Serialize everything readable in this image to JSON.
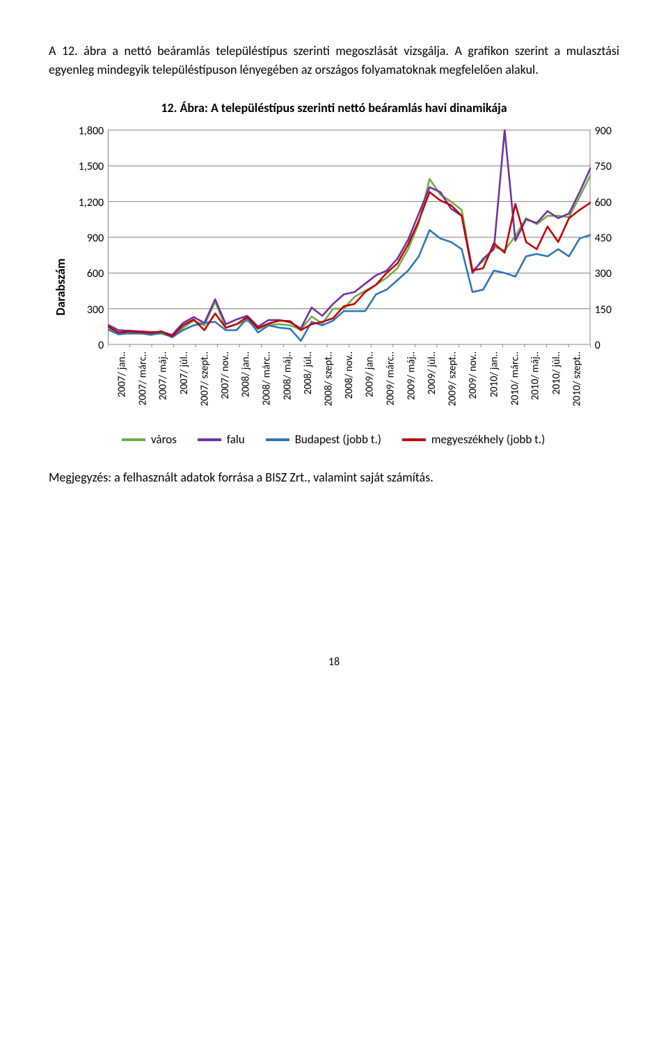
{
  "text": {
    "intro": "A 12. ábra a nettó beáramlás településtípus szerinti megoszlását vizsgálja. A grafikon szerint a mulasztási egyenleg mindegyik településtípuson lényegében az országos folyamatoknak megfelelően alakul.",
    "fig_title": "12. Ábra: A településtípus szerinti nettó beáramlás havi dinamikája",
    "yaxis_label": "Darabszám",
    "note": "Megjegyzés: a felhasznált adatok forrása a BISZ Zrt., valamint saját számítás.",
    "page_number": "18"
  },
  "chart": {
    "type": "line",
    "background_color": "#ffffff",
    "grid_color": "#808080",
    "axis_color": "#808080",
    "line_width": 2.6,
    "left_axis": {
      "min": 0,
      "max": 1800,
      "ticks": [
        0,
        300,
        600,
        900,
        1200,
        1500,
        1800
      ],
      "tick_labels": [
        "0",
        "300",
        "600",
        "900",
        "1,200",
        "1,500",
        "1,800"
      ]
    },
    "right_axis": {
      "min": 0,
      "max": 900,
      "ticks": [
        0,
        150,
        300,
        450,
        600,
        750,
        900
      ],
      "tick_labels": [
        "0",
        "150",
        "300",
        "450",
        "600",
        "750",
        "900"
      ]
    },
    "x_labels": [
      "2007/ jan..",
      "2007/ márc..",
      "2007/ máj..",
      "2007/ júl..",
      "2007/ szept..",
      "2007/ nov..",
      "2008/ jan..",
      "2008/ márc..",
      "2008/ máj..",
      "2008/ júl..",
      "2008/ szept..",
      "2008/ nov..",
      "2009/ jan..",
      "2009/ márc..",
      "2009/ máj..",
      "2009/ júl..",
      "2009/ szept..",
      "2009/ nov..",
      "2010/ jan..",
      "2010/ márc..",
      "2010/ máj..",
      "2010/ júl..",
      "2010/ szept.."
    ],
    "legend": [
      {
        "label": "város",
        "color": "#6fac46"
      },
      {
        "label": "falu",
        "color": "#7030a0"
      },
      {
        "label": "Budapest (jobb t.)",
        "color": "#2e75b6"
      },
      {
        "label": "megyeszékhely (jobb t.)",
        "color": "#c00000"
      }
    ],
    "series": [
      {
        "name": "város",
        "axis": "left",
        "color": "#6fac46",
        "values": [
          130,
          100,
          90,
          90,
          85,
          90,
          65,
          140,
          200,
          160,
          360,
          140,
          170,
          200,
          130,
          165,
          170,
          160,
          125,
          235,
          175,
          300,
          300,
          400,
          450,
          500,
          560,
          640,
          800,
          1020,
          1390,
          1260,
          1200,
          1130,
          620,
          700,
          820,
          790,
          910,
          1060,
          1010,
          1080,
          1080,
          1070,
          1240,
          1420
        ]
      },
      {
        "name": "falu",
        "axis": "left",
        "color": "#7030a0",
        "values": [
          165,
          120,
          115,
          110,
          105,
          105,
          80,
          180,
          230,
          180,
          380,
          170,
          210,
          240,
          150,
          205,
          205,
          185,
          135,
          310,
          240,
          340,
          420,
          440,
          510,
          580,
          620,
          720,
          880,
          1100,
          1320,
          1280,
          1140,
          1080,
          600,
          720,
          800,
          1800,
          870,
          1050,
          1020,
          1120,
          1060,
          1100,
          1280,
          1480
        ]
      },
      {
        "name": "Budapest (jobb t.)",
        "axis": "right",
        "color": "#2e75b6",
        "values": [
          63,
          42,
          47,
          48,
          40,
          49,
          30,
          60,
          80,
          90,
          95,
          60,
          60,
          110,
          50,
          80,
          70,
          66,
          15,
          95,
          80,
          100,
          140,
          140,
          140,
          210,
          230,
          270,
          310,
          370,
          480,
          445,
          430,
          400,
          220,
          230,
          310,
          300,
          285,
          370,
          380,
          370,
          400,
          370,
          445,
          460
        ]
      },
      {
        "name": "megyeszékhely (jobb t.)",
        "axis": "right",
        "color": "#c00000",
        "values": [
          75,
          50,
          55,
          52,
          48,
          55,
          34,
          80,
          105,
          60,
          130,
          70,
          85,
          115,
          68,
          88,
          100,
          98,
          60,
          85,
          95,
          110,
          160,
          170,
          220,
          250,
          300,
          340,
          420,
          520,
          640,
          605,
          585,
          540,
          310,
          320,
          425,
          385,
          590,
          430,
          400,
          495,
          430,
          530,
          565,
          595
        ]
      }
    ]
  }
}
